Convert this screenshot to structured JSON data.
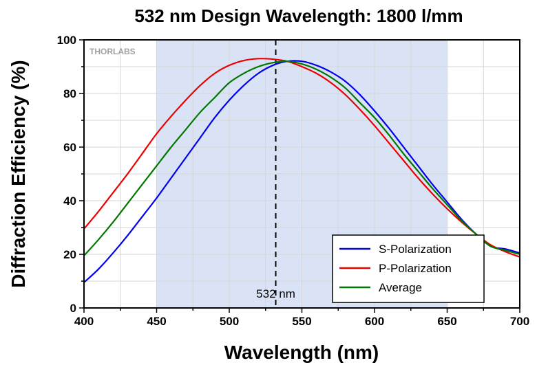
{
  "chart_data": {
    "type": "line",
    "title": "532 nm Design Wavelength: 1800 l/mm",
    "xlabel": "Wavelength (nm)",
    "ylabel": "Diffraction Efficiency (%)",
    "xlim": [
      400,
      700
    ],
    "ylim": [
      0,
      100
    ],
    "xticks": [
      400,
      450,
      500,
      550,
      600,
      650,
      700
    ],
    "yticks": [
      0,
      20,
      40,
      60,
      80,
      100
    ],
    "grid": true,
    "highlight_band": [
      450,
      650
    ],
    "highlight_color": "#dae3f6",
    "vline": {
      "x": 532,
      "label": "532 nm",
      "style": "dashed"
    },
    "logo": "THORLABS",
    "legend_position": "bottom-right",
    "x": [
      400,
      410,
      420,
      430,
      440,
      450,
      460,
      470,
      480,
      490,
      500,
      510,
      520,
      530,
      540,
      550,
      560,
      570,
      580,
      590,
      600,
      610,
      620,
      630,
      640,
      650,
      660,
      670,
      680,
      690,
      700
    ],
    "series": [
      {
        "name": "S-Polarization",
        "color": "#0000ee",
        "values": [
          9.5,
          14.5,
          20.5,
          27,
          34,
          41,
          48.5,
          56,
          63.5,
          71,
          77.5,
          83,
          87.5,
          90.5,
          92,
          92,
          90.5,
          88,
          84.5,
          79.5,
          73.5,
          67,
          60,
          53,
          46,
          39.5,
          33,
          27.5,
          23,
          22,
          20.5
        ]
      },
      {
        "name": "P-Polarization",
        "color": "#ee0000",
        "values": [
          29.5,
          36,
          43,
          50,
          57.5,
          65,
          71.5,
          77.5,
          83,
          87.5,
          90.5,
          92.3,
          93,
          92.8,
          92,
          90,
          87.5,
          84,
          79.5,
          74,
          68,
          61.5,
          55,
          48.5,
          42.5,
          37,
          32,
          27.5,
          23.5,
          21,
          19
        ]
      },
      {
        "name": "Average",
        "color": "#007700",
        "values": [
          19.5,
          25.5,
          32,
          39,
          46,
          53,
          60,
          66.5,
          73,
          78.5,
          84,
          87.5,
          90,
          91.5,
          92,
          91,
          89,
          86,
          82,
          76.5,
          71,
          64.5,
          57.5,
          51,
          44.5,
          38.5,
          32.5,
          27.5,
          23,
          21.5,
          20
        ]
      }
    ]
  }
}
